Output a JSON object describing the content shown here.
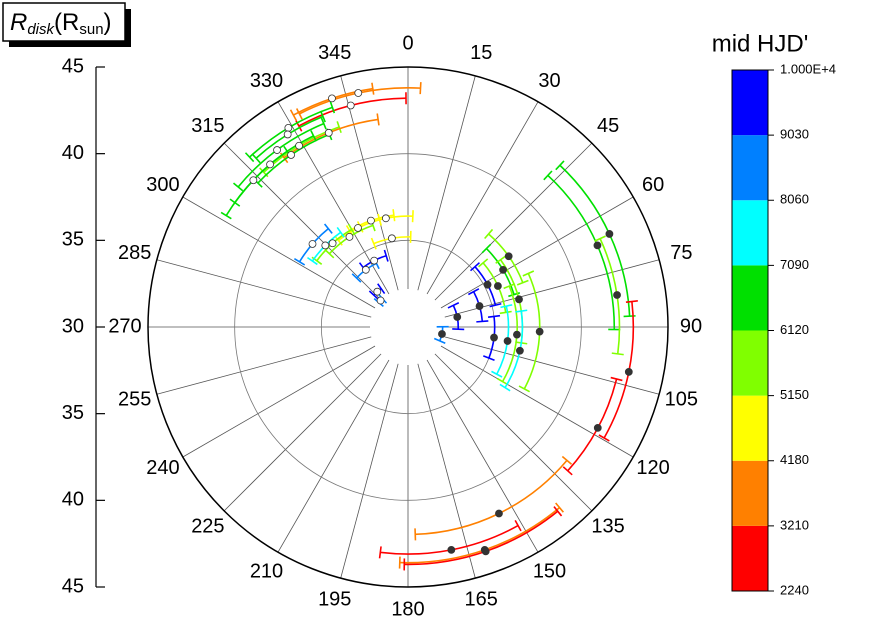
{
  "chart_data": {
    "type": "polar",
    "radial_axis_label": [
      "R",
      "disk",
      "(R",
      "sun",
      ")"
    ],
    "rlim": [
      30,
      45
    ],
    "rticks": [
      30,
      35,
      40,
      45
    ],
    "angle_ticks": [
      0,
      15,
      30,
      45,
      60,
      75,
      90,
      105,
      120,
      135,
      150,
      165,
      180,
      195,
      210,
      225,
      240,
      255,
      270,
      285,
      300,
      315,
      330,
      345
    ],
    "colorbar": {
      "title": "mid HJD'",
      "levels": [
        2240,
        3210,
        4180,
        5150,
        6120,
        7090,
        8060,
        9030,
        {
          "value": 10000,
          "label": "1.000E+4"
        }
      ],
      "colors": [
        "#ff0000",
        "#ff8000",
        "#ffff00",
        "#80ff00",
        "#00e000",
        "#00ffff",
        "#0080ff",
        "#0000ff"
      ]
    },
    "series": [
      {
        "marker_fill": "#333333",
        "theta": [
          66.7,
          65.2,
          81.3,
          101.5,
          118,
          154,
          169,
          161,
          160.9,
          54.9,
          59,
          65.5,
          62,
          73.7,
          76,
          92,
          94,
          98,
          102,
          97,
          78.5,
          101.6
        ],
        "r": [
          41.9,
          42.8,
          42.2,
          43.0,
          42.4,
          41.97,
          43.1,
          43.6,
          43.7,
          37.1,
          36.4,
          35.7,
          35.2,
          34.3,
          36.6,
          37.6,
          36.3,
          35.8,
          36.6,
          35,
          32.9,
          32
        ],
        "theta_err": [
          24,
          22,
          16,
          18,
          14,
          24,
          18,
          21,
          20,
          14,
          14,
          16,
          14,
          12,
          22,
          26,
          26,
          20,
          20,
          14,
          14,
          12
        ],
        "hjd": [
          6300,
          6500,
          5800,
          2600,
          2700,
          3500,
          2500,
          3400,
          3000,
          5600,
          6400,
          5400,
          9600,
          9500,
          5200,
          5700,
          5500,
          7600,
          7500,
          9400,
          9300,
          8500
        ]
      },
      {
        "marker_fill": "#ffffff",
        "theta": [
          348,
          341.6,
          345.5,
          329,
          328,
          323.5,
          329,
          337.8,
          325.8,
          319.7,
          313.5,
          348.5,
          340.8,
          333.2,
          349.7,
          327,
          318,
          311,
          314.6,
          333,
          323.6,
          319,
          314
        ],
        "r": [
          43.8,
          43.9,
          43.2,
          43.4,
          43.1,
          42.7,
          42.2,
          42.1,
          42,
          42.3,
          42.3,
          36.4,
          36.5,
          36.4,
          35.2,
          36.2,
          36.5,
          37.3,
          36.7,
          34.3,
          34.1,
          32.7,
          32.2
        ],
        "theta_err": [
          15,
          10,
          14,
          12,
          10,
          14,
          12,
          14,
          12,
          14,
          12,
          14,
          12,
          12,
          12,
          14,
          12,
          10,
          10,
          10,
          10,
          6,
          4
        ],
        "hjd": [
          3600,
          3400,
          2700,
          6600,
          6800,
          6200,
          5700,
          3300,
          6500,
          6700,
          6900,
          4400,
          4600,
          4900,
          4300,
          5300,
          5400,
          8700,
          7800,
          9200,
          9000,
          9100,
          8300
        ]
      }
    ]
  }
}
